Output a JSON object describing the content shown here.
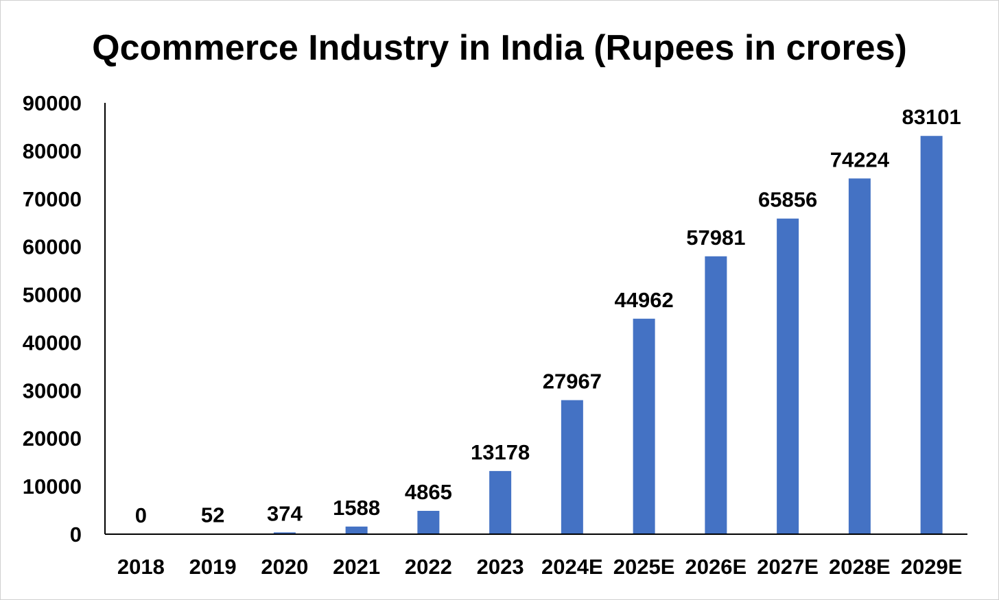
{
  "chart_data": {
    "type": "bar",
    "title": "Qcommerce Industry in India (Rupees in crores)",
    "xlabel": "",
    "ylabel": "",
    "categories": [
      "2018",
      "2019",
      "2020",
      "2021",
      "2022",
      "2023",
      "2024E",
      "2025E",
      "2026E",
      "2027E",
      "2028E",
      "2029E"
    ],
    "values": [
      0,
      52,
      374,
      1588,
      4865,
      13178,
      27967,
      44962,
      57981,
      65856,
      74224,
      83101
    ],
    "data_labels": [
      "0",
      "52",
      "374",
      "1588",
      "4865",
      "13178",
      "27967",
      "44962",
      "57981",
      "65856",
      "74224",
      "83101"
    ],
    "ylim": [
      0,
      90000
    ],
    "yticks": [
      "0",
      "10000",
      "20000",
      "30000",
      "40000",
      "50000",
      "60000",
      "70000",
      "80000",
      "90000"
    ],
    "grid": false,
    "legend": "none",
    "colors": {
      "bar": "#4472c4",
      "axis": "#000000",
      "text": "#000000",
      "background": "#ffffff"
    }
  }
}
